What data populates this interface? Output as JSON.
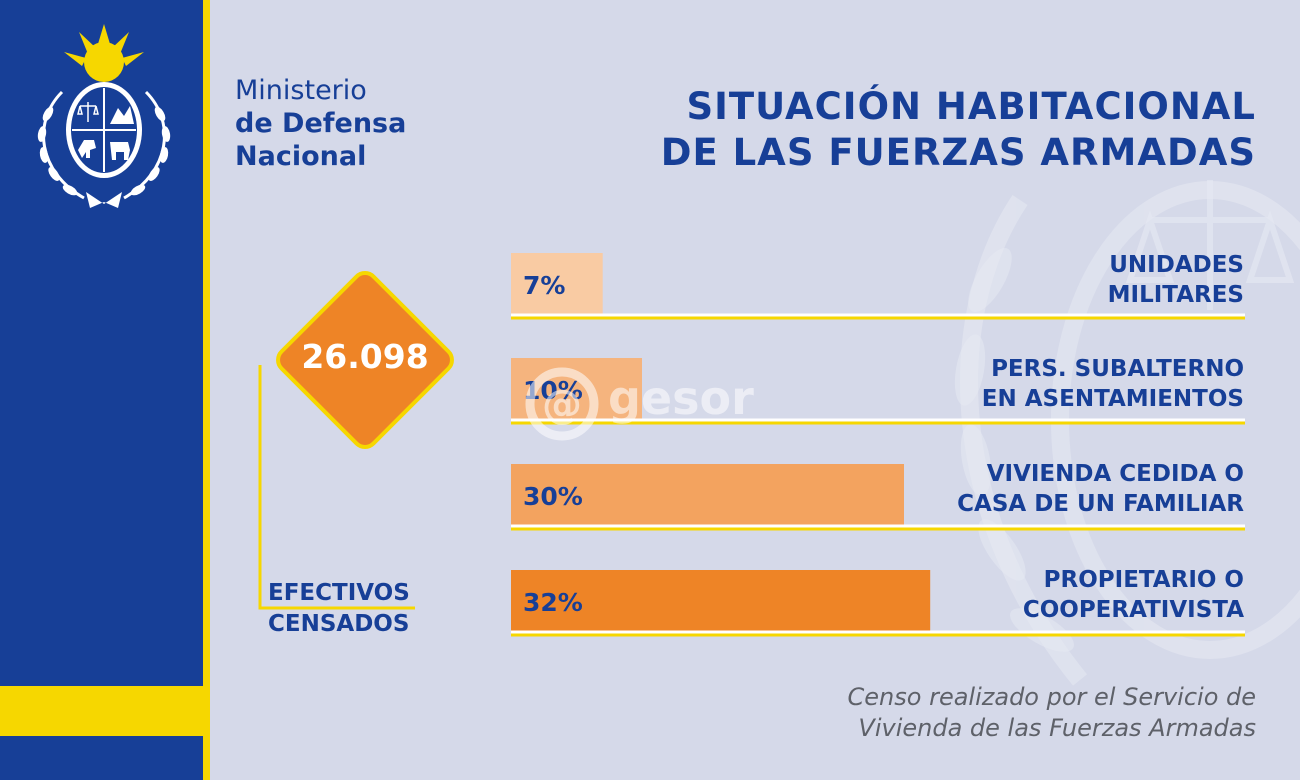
{
  "header": {
    "ministry_line1": "Ministerio",
    "ministry_line2": "de Defensa",
    "ministry_line3": "Nacional",
    "title_line1": "SITUACIÓN HABITACIONAL",
    "title_line2": "DE LAS FUERZAS ARMADAS"
  },
  "summary": {
    "total": "26.098",
    "label_line1": "EFECTIVOS",
    "label_line2": "CENSADOS"
  },
  "chart_data": {
    "type": "bar",
    "orientation": "horizontal",
    "categories": [
      [
        "UNIDADES",
        "MILITARES"
      ],
      [
        "PERS. SUBALTERNO",
        "EN ASENTAMIENTOS"
      ],
      [
        "VIVIENDA CEDIDA O",
        "CASA DE UN FAMILIAR"
      ],
      [
        "PROPIETARIO O",
        "COOPERATIVISTA"
      ]
    ],
    "values": [
      7,
      10,
      30,
      32
    ],
    "value_labels": [
      "7%",
      "10%",
      "30%",
      "32%"
    ],
    "unit": "%",
    "bar_colors": [
      "#f9cba3",
      "#f5b47e",
      "#f3a35f",
      "#ee8426"
    ],
    "xlim": [
      0,
      100
    ],
    "grid": false,
    "legend": false
  },
  "footnote": {
    "line1": "Censo realizado por el Servicio de",
    "line2": "Vivienda de las Fuerzas Armadas"
  },
  "watermark": {
    "text": "gesor",
    "symbol": "@"
  },
  "colors": {
    "navy": "#173f97",
    "yellow": "#f6d700",
    "background": "#d5d9e9",
    "orange": "#ee8426"
  },
  "icons": {
    "coat_of_arms": "uruguay-coat-of-arms-icon",
    "watermark_emblem": "faded-coat-of-arms-watermark"
  }
}
